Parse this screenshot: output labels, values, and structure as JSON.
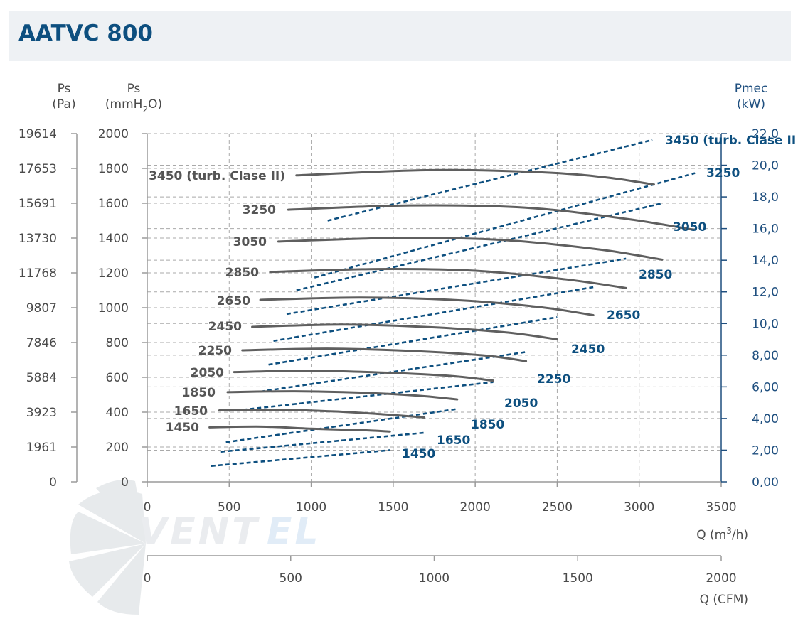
{
  "title": "AATVC 800",
  "brand": "VentEL",
  "colors": {
    "pressure": "#5f5f5f",
    "power": "#0d4f7f",
    "header_bg": "#eef1f4"
  },
  "chart_data": {
    "type": "line",
    "axes": {
      "ps_pa": {
        "title": "Ps",
        "unit": "(Pa)",
        "ticks": [
          "19614",
          "17653",
          "15691",
          "13730",
          "11768",
          "9807",
          "7846",
          "5884",
          "3923",
          "1961",
          "0"
        ]
      },
      "ps_mmh2o": {
        "title": "Ps",
        "unit_pre": "(mmH",
        "unit_sub": "2",
        "unit_post": "O)",
        "ticks": [
          "2000",
          "1800",
          "1600",
          "1400",
          "1200",
          "1000",
          "800",
          "600",
          "400",
          "200",
          "0"
        ],
        "ylim": [
          0,
          2000
        ]
      },
      "pmec": {
        "title": "Pmec",
        "unit": "(kW)",
        "ticks": [
          "22,0",
          "20,0",
          "18,0",
          "16,0",
          "14,0",
          "12,0",
          "10,0",
          "8,00",
          "6,00",
          "4,00",
          "2,00",
          "0,00"
        ],
        "ylim": [
          0,
          22
        ]
      },
      "q_m3h": {
        "label_pre": "Q (m",
        "label_sup": "3",
        "label_post": "/h)",
        "ticks": [
          "0",
          "500",
          "1000",
          "1500",
          "2000",
          "2500",
          "3000",
          "3500"
        ],
        "xlim": [
          0,
          3500
        ]
      },
      "q_cfm": {
        "label": "Q (CFM)",
        "ticks": [
          "0",
          "500",
          "1000",
          "1500",
          "2000"
        ],
        "xlim": [
          0,
          2000
        ]
      }
    },
    "grid": true,
    "pressure_series": [
      {
        "name": "1450",
        "points": [
          [
            380,
            313
          ],
          [
            700,
            317
          ],
          [
            1000,
            305
          ],
          [
            1300,
            297
          ],
          [
            1480,
            289
          ]
        ]
      },
      {
        "name": "1650",
        "points": [
          [
            440,
            410
          ],
          [
            800,
            414
          ],
          [
            1150,
            404
          ],
          [
            1450,
            387
          ],
          [
            1690,
            370
          ]
        ]
      },
      {
        "name": "1850",
        "points": [
          [
            490,
            515
          ],
          [
            900,
            520
          ],
          [
            1300,
            512
          ],
          [
            1650,
            495
          ],
          [
            1890,
            473
          ]
        ]
      },
      {
        "name": "2050",
        "points": [
          [
            530,
            630
          ],
          [
            1000,
            638
          ],
          [
            1450,
            627
          ],
          [
            1850,
            608
          ],
          [
            2110,
            581
          ]
        ]
      },
      {
        "name": "2250",
        "points": [
          [
            580,
            755
          ],
          [
            1100,
            765
          ],
          [
            1600,
            752
          ],
          [
            2050,
            726
          ],
          [
            2310,
            693
          ]
        ]
      },
      {
        "name": "2450",
        "points": [
          [
            640,
            890
          ],
          [
            1200,
            903
          ],
          [
            1750,
            887
          ],
          [
            2200,
            857
          ],
          [
            2500,
            818
          ]
        ]
      },
      {
        "name": "2650",
        "points": [
          [
            690,
            1045
          ],
          [
            1300,
            1058
          ],
          [
            1900,
            1043
          ],
          [
            2400,
            1003
          ],
          [
            2720,
            957
          ]
        ]
      },
      {
        "name": "2850",
        "points": [
          [
            750,
            1205
          ],
          [
            1400,
            1222
          ],
          [
            2000,
            1212
          ],
          [
            2550,
            1163
          ],
          [
            2920,
            1113
          ]
        ]
      },
      {
        "name": "3050",
        "points": [
          [
            800,
            1380
          ],
          [
            1500,
            1400
          ],
          [
            2150,
            1390
          ],
          [
            2750,
            1335
          ],
          [
            3140,
            1276
          ]
        ]
      },
      {
        "name": "3250",
        "points": [
          [
            860,
            1563
          ],
          [
            1600,
            1587
          ],
          [
            2300,
            1575
          ],
          [
            2900,
            1513
          ],
          [
            3330,
            1448
          ]
        ]
      },
      {
        "name": "3450 (turb. Clase II)",
        "points": [
          [
            910,
            1760
          ],
          [
            1700,
            1790
          ],
          [
            2400,
            1778
          ],
          [
            2800,
            1748
          ],
          [
            3090,
            1707
          ]
        ]
      }
    ],
    "power_series": [
      {
        "name": "1450",
        "points": [
          [
            390,
            1.0
          ],
          [
            1480,
            2.0
          ]
        ]
      },
      {
        "name": "1650",
        "points": [
          [
            450,
            1.9
          ],
          [
            1690,
            3.1
          ]
        ]
      },
      {
        "name": "1850",
        "points": [
          [
            480,
            2.5
          ],
          [
            1890,
            4.6
          ]
        ]
      },
      {
        "name": "2050",
        "points": [
          [
            540,
            4.5
          ],
          [
            2110,
            6.3
          ]
        ]
      },
      {
        "name": "2250",
        "points": [
          [
            690,
            5.7
          ],
          [
            2310,
            8.2
          ]
        ]
      },
      {
        "name": "2450",
        "points": [
          [
            740,
            7.4
          ],
          [
            2500,
            10.4
          ]
        ]
      },
      {
        "name": "2650",
        "points": [
          [
            770,
            8.9
          ],
          [
            2720,
            12.3
          ]
        ]
      },
      {
        "name": "2850",
        "points": [
          [
            850,
            10.6
          ],
          [
            2920,
            14.1
          ]
        ]
      },
      {
        "name": "3050",
        "points": [
          [
            910,
            12.1
          ],
          [
            3140,
            17.6
          ]
        ]
      },
      {
        "name": "3250",
        "points": [
          [
            1020,
            12.9
          ],
          [
            3340,
            19.5
          ]
        ]
      },
      {
        "name": "3450 (turb. Clase II)",
        "points": [
          [
            1100,
            16.5
          ],
          [
            3080,
            21.6
          ]
        ]
      }
    ],
    "pressure_labels": [
      "3450 (turb. Clase II)",
      "3250",
      "3050",
      "2850",
      "2650",
      "2450",
      "2250",
      "2050",
      "1850",
      "1650",
      "1450"
    ],
    "power_labels": [
      "3450 (turb. Clase II",
      "3250",
      "3050",
      "2850",
      "2650",
      "2450",
      "2250",
      "2050",
      "1850",
      "1650",
      "1450"
    ]
  }
}
